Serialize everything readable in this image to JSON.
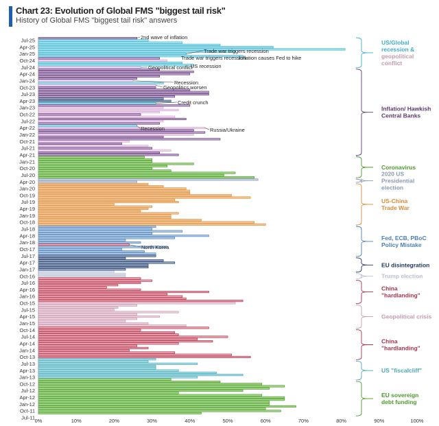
{
  "title": "Chart 23: Evolution of Global FMS \"biggest tail risk\"",
  "subtitle": "History of Global FMS \"biggest tail risk\" answers",
  "colors": {
    "accent": "#1f5fae",
    "cyan": "#3bb0cc",
    "purple": "#5b3a6e",
    "lilac": "#d7a9d4",
    "green": "#4a9a2a",
    "grayblue": "#8a9bb3",
    "orange": "#d98a3a",
    "steelblue": "#4a7fb8",
    "navy": "#1d3560",
    "lightgray": "#b9c2d3",
    "crimson": "#a8324a",
    "pink": "#e89aa8",
    "mauve": "#c59ab0",
    "teal": "#4aa8b8"
  },
  "chart_data": {
    "type": "bar",
    "orientation": "horizontal",
    "title": "Chart 23: Evolution of Global FMS \"biggest tail risk\"",
    "subtitle": "History of Global FMS \"biggest tail risk\" answers",
    "xlabel": "",
    "ylabel": "",
    "xlim": [
      0,
      100
    ],
    "x_ticks": [
      "0%",
      "10%",
      "20%",
      "30%",
      "40%",
      "50%",
      "60%",
      "70%",
      "80%",
      "90%",
      "100%"
    ],
    "y_tick_labels": [
      "Jul-25",
      "Apr-25",
      "Jan-25",
      "Oct-24",
      "Jul-24",
      "Apr-24",
      "Jan-24",
      "Oct-23",
      "Jul-23",
      "Apr-23",
      "Jan-23",
      "Oct-22",
      "Jul-22",
      "Apr-22",
      "Jan-22",
      "Oct-21",
      "Jul-21",
      "Apr-21",
      "Jan-21",
      "Oct-20",
      "Jul-20",
      "Apr-20",
      "Jan-20",
      "Oct-19",
      "Jul-19",
      "Apr-19",
      "Jan-19",
      "Oct-18",
      "Jul-18",
      "Apr-18",
      "Jan-18",
      "Oct-17",
      "Jul-17",
      "Apr-17",
      "Jan-17",
      "Oct-16",
      "Jul-16",
      "Apr-16",
      "Jan-16",
      "Oct-15",
      "Jul-15",
      "Apr-15",
      "Jan-15",
      "Oct-14",
      "Jul-14",
      "Apr-14",
      "Jan-14",
      "Oct-13",
      "Jul-13",
      "Apr-13",
      "Jan-13",
      "Oct-12",
      "Jul-12",
      "Apr-12",
      "Jan-12",
      "Oct-11",
      "Jul-11"
    ],
    "bars_top_to_bottom": [
      {
        "v": 26,
        "c": "purple"
      },
      {
        "v": 29,
        "c": "cyan"
      },
      {
        "v": 38,
        "c": "cyan"
      },
      {
        "v": 48,
        "c": "cyan"
      },
      {
        "v": 62,
        "c": "cyan"
      },
      {
        "v": 81,
        "c": "cyan"
      },
      {
        "v": 52,
        "c": "cyan"
      },
      {
        "v": 39,
        "c": "cyan"
      },
      {
        "v": 54,
        "c": "cyan"
      },
      {
        "v": 32,
        "c": "purple"
      },
      {
        "v": 34,
        "c": "lilac"
      },
      {
        "v": 38,
        "c": "cyan"
      },
      {
        "v": 41,
        "c": "cyan"
      },
      {
        "v": 27,
        "c": "lilac"
      },
      {
        "v": 32,
        "c": "purple"
      },
      {
        "v": 41,
        "c": "purple"
      },
      {
        "v": 40,
        "c": "purple"
      },
      {
        "v": 32,
        "c": "purple"
      },
      {
        "v": 26,
        "c": "purple"
      },
      {
        "v": 25,
        "c": "lilac"
      },
      {
        "v": 33,
        "c": "cyan"
      },
      {
        "v": 31,
        "c": "lilac"
      },
      {
        "v": 31,
        "c": "purple"
      },
      {
        "v": 40,
        "c": "purple"
      },
      {
        "v": 45,
        "c": "purple"
      },
      {
        "v": 45,
        "c": "purple"
      },
      {
        "v": 36,
        "c": "purple"
      },
      {
        "v": 33,
        "c": "navy"
      },
      {
        "v": 35,
        "c": "navy"
      },
      {
        "v": 31,
        "c": "cyan"
      },
      {
        "v": 40,
        "c": "purple"
      },
      {
        "v": 33,
        "c": "lilac"
      },
      {
        "v": 37,
        "c": "lilac"
      },
      {
        "v": 32,
        "c": "lilac"
      },
      {
        "v": 27,
        "c": "purple"
      },
      {
        "v": 36,
        "c": "lilac"
      },
      {
        "v": 39,
        "c": "purple"
      },
      {
        "v": 33,
        "c": "lilac"
      },
      {
        "v": 32,
        "c": "purple"
      },
      {
        "v": 26,
        "c": "cyan"
      },
      {
        "v": 44,
        "c": "lilac"
      },
      {
        "v": 41,
        "c": "purple"
      },
      {
        "v": 44,
        "c": "purple"
      },
      {
        "v": 41,
        "c": "lilac"
      },
      {
        "v": 33,
        "c": "purple"
      },
      {
        "v": 48,
        "c": "purple"
      },
      {
        "v": 24,
        "c": "lilac"
      },
      {
        "v": 22,
        "c": "purple"
      },
      {
        "v": 29,
        "c": "lilac"
      },
      {
        "v": 30,
        "c": "purple"
      },
      {
        "v": 35,
        "c": "lilac"
      },
      {
        "v": 32,
        "c": "purple"
      },
      {
        "v": 37,
        "c": "purple"
      },
      {
        "v": 28,
        "c": "green"
      },
      {
        "v": 30,
        "c": "green"
      },
      {
        "v": 30,
        "c": "green"
      },
      {
        "v": 41,
        "c": "green"
      },
      {
        "v": 34,
        "c": "green"
      },
      {
        "v": 30,
        "c": "green"
      },
      {
        "v": 35,
        "c": "green"
      },
      {
        "v": 52,
        "c": "green"
      },
      {
        "v": 49,
        "c": "green"
      },
      {
        "v": 57,
        "c": "green"
      },
      {
        "v": 58,
        "c": "grayblue"
      },
      {
        "v": 26,
        "c": "grayblue"
      },
      {
        "v": 29,
        "c": "orange"
      },
      {
        "v": 33,
        "c": "orange"
      },
      {
        "v": 39,
        "c": "orange"
      },
      {
        "v": 40,
        "c": "orange"
      },
      {
        "v": 40,
        "c": "orange"
      },
      {
        "v": 51,
        "c": "orange"
      },
      {
        "v": 56,
        "c": "orange"
      },
      {
        "v": 36,
        "c": "orange"
      },
      {
        "v": 37,
        "c": "orange"
      },
      {
        "v": 20,
        "c": "orange"
      },
      {
        "v": 30,
        "c": "orange"
      },
      {
        "v": 29,
        "c": "orange"
      },
      {
        "v": 27,
        "c": "orange"
      },
      {
        "v": 37,
        "c": "orange"
      },
      {
        "v": 35,
        "c": "orange"
      },
      {
        "v": 35,
        "c": "orange"
      },
      {
        "v": 43,
        "c": "orange"
      },
      {
        "v": 57,
        "c": "orange"
      },
      {
        "v": 60,
        "c": "orange"
      },
      {
        "v": 31,
        "c": "steelblue"
      },
      {
        "v": 30,
        "c": "steelblue"
      },
      {
        "v": 38,
        "c": "steelblue"
      },
      {
        "v": 30,
        "c": "steelblue"
      },
      {
        "v": 45,
        "c": "steelblue"
      },
      {
        "v": 36,
        "c": "steelblue"
      },
      {
        "v": 23,
        "c": "steelblue"
      },
      {
        "v": 27,
        "c": "steelblue"
      },
      {
        "v": 24,
        "c": "crimson"
      },
      {
        "v": 34,
        "c": "steelblue"
      },
      {
        "v": 22,
        "c": "steelblue"
      },
      {
        "v": 28,
        "c": "steelblue"
      },
      {
        "v": 31,
        "c": "steelblue"
      },
      {
        "v": 31,
        "c": "navy"
      },
      {
        "v": 23,
        "c": "navy"
      },
      {
        "v": 33,
        "c": "navy"
      },
      {
        "v": 36,
        "c": "navy"
      },
      {
        "v": 29,
        "c": "navy"
      },
      {
        "v": 29,
        "c": "navy"
      },
      {
        "v": 23,
        "c": "navy"
      },
      {
        "v": 20,
        "c": "lightgray"
      },
      {
        "v": 23,
        "c": "lightgray"
      },
      {
        "v": 23,
        "c": "lightgray"
      },
      {
        "v": 27,
        "c": "crimson"
      },
      {
        "v": 30,
        "c": "crimson"
      },
      {
        "v": 27,
        "c": "crimson"
      },
      {
        "v": 21,
        "c": "crimson"
      },
      {
        "v": 18,
        "c": "crimson"
      },
      {
        "v": 27,
        "c": "crimson"
      },
      {
        "v": 45,
        "c": "crimson"
      },
      {
        "v": 34,
        "c": "crimson"
      },
      {
        "v": 38,
        "c": "crimson"
      },
      {
        "v": 39,
        "c": "crimson"
      },
      {
        "v": 54,
        "c": "crimson"
      },
      {
        "v": 52,
        "c": "mauve"
      },
      {
        "v": 26,
        "c": "mauve"
      },
      {
        "v": 21,
        "c": "mauve"
      },
      {
        "v": 20,
        "c": "mauve"
      },
      {
        "v": 37,
        "c": "mauve"
      },
      {
        "v": 26,
        "c": "mauve"
      },
      {
        "v": 32,
        "c": "mauve"
      },
      {
        "v": 26,
        "c": "mauve"
      },
      {
        "v": 23,
        "c": "mauve"
      },
      {
        "v": 29,
        "c": "mauve"
      },
      {
        "v": 39,
        "c": "mauve"
      },
      {
        "v": 45,
        "c": "crimson"
      },
      {
        "v": 27,
        "c": "crimson"
      },
      {
        "v": 36,
        "c": "crimson"
      },
      {
        "v": 37,
        "c": "crimson"
      },
      {
        "v": 50,
        "c": "crimson"
      },
      {
        "v": 42,
        "c": "crimson"
      },
      {
        "v": 46,
        "c": "crimson"
      },
      {
        "v": 37,
        "c": "crimson"
      },
      {
        "v": 26,
        "c": "crimson"
      },
      {
        "v": 29,
        "c": "crimson"
      },
      {
        "v": 24,
        "c": "crimson"
      },
      {
        "v": 36,
        "c": "crimson"
      },
      {
        "v": 51,
        "c": "crimson"
      },
      {
        "v": 56,
        "c": "crimson"
      },
      {
        "v": 31,
        "c": "teal"
      },
      {
        "v": 29,
        "c": "teal"
      },
      {
        "v": 42,
        "c": "teal"
      },
      {
        "v": 31,
        "c": "teal"
      },
      {
        "v": 31,
        "c": "teal"
      },
      {
        "v": 37,
        "c": "teal"
      },
      {
        "v": 47,
        "c": "teal"
      },
      {
        "v": 54,
        "c": "teal"
      },
      {
        "v": 42,
        "c": "teal"
      },
      {
        "v": 35,
        "c": "green"
      },
      {
        "v": 48,
        "c": "green"
      },
      {
        "v": 59,
        "c": "green"
      },
      {
        "v": 65,
        "c": "green"
      },
      {
        "v": 61,
        "c": "green"
      },
      {
        "v": 54,
        "c": "green"
      },
      {
        "v": 37,
        "c": "green"
      },
      {
        "v": 59,
        "c": "green"
      },
      {
        "v": 65,
        "c": "green"
      },
      {
        "v": 65,
        "c": "green"
      },
      {
        "v": 61,
        "c": "green"
      },
      {
        "v": 61,
        "c": "green"
      },
      {
        "v": 68,
        "c": "green"
      },
      {
        "v": 60,
        "c": "green"
      },
      {
        "v": 64,
        "c": "green"
      },
      {
        "v": 43,
        "c": "green"
      }
    ],
    "annotations": [
      {
        "text": "2nd wave of inflation",
        "row": 0
      },
      {
        "text": "Trade war triggers recession",
        "row": 7
      },
      {
        "text": "Trade war triggers recession",
        "row": 8
      },
      {
        "text": "Inflation causes Fed to hike",
        "row": 8
      },
      {
        "text": "US recession",
        "row": 12
      },
      {
        "text": "Geopolitical conflict",
        "row": 13
      },
      {
        "text": "Recession",
        "row": 19
      },
      {
        "text": "Geopolitics worsen",
        "row": 21
      },
      {
        "text": "Credit crunch",
        "row": 29
      },
      {
        "text": "Recession",
        "row": 39
      },
      {
        "text": "Russia/Ukraine",
        "row": 40
      },
      {
        "text": "North Korea",
        "row": 92
      }
    ],
    "groups": [
      {
        "label": "US/Global recession & geopolitical conflict",
        "label_lines": [
          "US/Global",
          "recession &",
          "geopolitical",
          "conflict"
        ],
        "line_colors": [
          "cyan",
          "cyan",
          "mauve",
          "mauve"
        ],
        "from": 0,
        "to": 13,
        "color": "cyan"
      },
      {
        "label": "Inflation/ Hawkish Central Banks",
        "label_lines": [
          "Inflation/ Hawkish",
          "Central Banks"
        ],
        "line_colors": [
          "purple",
          "purple"
        ],
        "from": 14,
        "to": 52,
        "color": "purple"
      },
      {
        "label": "Coronavirus",
        "label_lines": [
          "Coronavirus"
        ],
        "line_colors": [
          "green"
        ],
        "from": 53,
        "to": 62,
        "color": "green"
      },
      {
        "label": "2020 US Presidential election",
        "label_lines": [
          "2020 US",
          "Presidential",
          "election"
        ],
        "line_colors": [
          "grayblue",
          "grayblue",
          "grayblue"
        ],
        "from": 63,
        "to": 64,
        "color": "grayblue"
      },
      {
        "label": "US-China Trade War",
        "label_lines": [
          "US-China",
          "Trade War"
        ],
        "line_colors": [
          "orange",
          "orange"
        ],
        "from": 65,
        "to": 83,
        "color": "orange"
      },
      {
        "label": "Fed, ECB, PBoC Policy Mistake",
        "label_lines": [
          "Fed, ECB, PBoC",
          "Policy Mistake"
        ],
        "line_colors": [
          "steelblue",
          "steelblue"
        ],
        "from": 84,
        "to": 97,
        "color": "steelblue"
      },
      {
        "label": "EU disintegration",
        "label_lines": [
          "EU disintegration"
        ],
        "line_colors": [
          "navy"
        ],
        "from": 98,
        "to": 104,
        "color": "navy"
      },
      {
        "label": "Trump election",
        "label_lines": [
          "Trump election"
        ],
        "line_colors": [
          "lightgray"
        ],
        "from": 105,
        "to": 107,
        "color": "lightgray"
      },
      {
        "label": "China \"hardlanding\"",
        "label_lines": [
          "China",
          "\"hardlanding\""
        ],
        "line_colors": [
          "crimson",
          "crimson"
        ],
        "from": 108,
        "to": 118,
        "color": "crimson"
      },
      {
        "label": "Geopolitical crisis",
        "label_lines": [
          "Geopolitical crisis"
        ],
        "line_colors": [
          "mauve"
        ],
        "from": 119,
        "to": 129,
        "color": "mauve"
      },
      {
        "label": "China \"hardlanding\"",
        "label_lines": [
          "China",
          "\"hardlanding\""
        ],
        "line_colors": [
          "crimson",
          "crimson"
        ],
        "from": 130,
        "to": 143,
        "color": "crimson"
      },
      {
        "label": "US \"fiscalcliff\"",
        "label_lines": [
          "US \"fiscalcliff\""
        ],
        "line_colors": [
          "teal"
        ],
        "from": 144,
        "to": 152,
        "color": "teal"
      },
      {
        "label": "EU sovereign debt funding",
        "label_lines": [
          "EU sovereign",
          "debt funding"
        ],
        "line_colors": [
          "green",
          "green"
        ],
        "from": 153,
        "to": 168,
        "color": "green"
      }
    ]
  }
}
